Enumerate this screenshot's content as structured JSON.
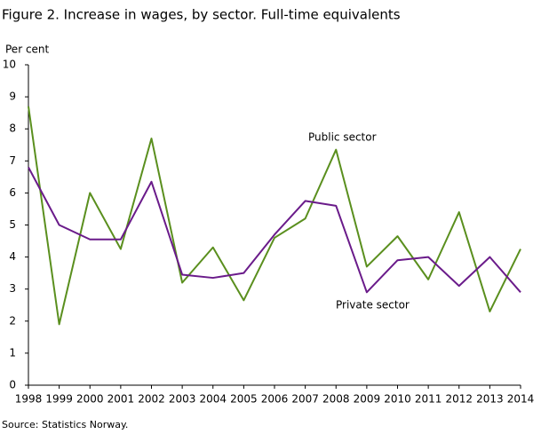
{
  "chart_data": {
    "type": "line",
    "title": "Figure 2. Increase in wages, by sector. Full-time equivalents",
    "y_label": "Per cent",
    "source": "Source: Statistics Norway.",
    "categories": [
      "1998",
      "1999",
      "2000",
      "2001",
      "2002",
      "2003",
      "2004",
      "2005",
      "2006",
      "2007",
      "2008",
      "2009",
      "2010",
      "2011",
      "2012",
      "2013",
      "2014"
    ],
    "series": [
      {
        "name": "Public sector",
        "color": "#5a8f1e",
        "values": [
          8.7,
          1.9,
          6.0,
          4.25,
          7.7,
          3.2,
          4.3,
          2.65,
          4.6,
          5.2,
          7.35,
          3.7,
          4.65,
          3.3,
          5.4,
          2.3,
          4.25
        ]
      },
      {
        "name": "Private sector",
        "color": "#6a1b8a",
        "values": [
          6.8,
          5.0,
          4.55,
          4.55,
          6.35,
          3.45,
          3.35,
          3.5,
          4.7,
          5.75,
          5.6,
          2.9,
          3.9,
          4.0,
          3.1,
          4.0,
          2.9
        ]
      }
    ],
    "ylim": [
      0,
      10
    ],
    "yticks": [
      0,
      1,
      2,
      3,
      4,
      5,
      6,
      7,
      8,
      9,
      10
    ],
    "grid": false
  }
}
